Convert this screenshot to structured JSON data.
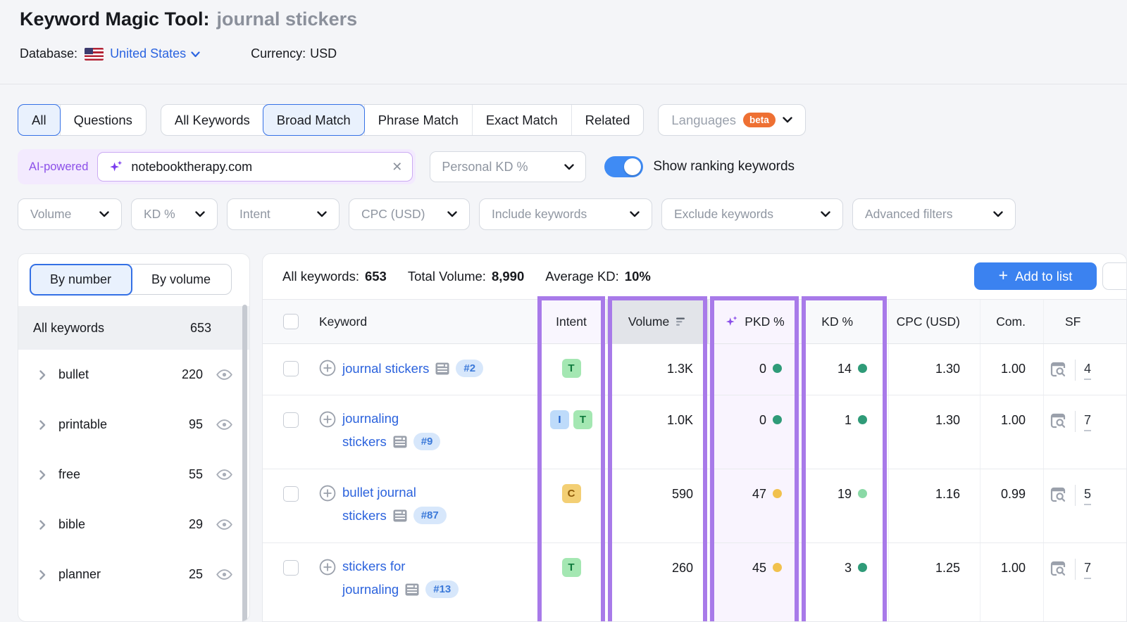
{
  "header": {
    "title": "Keyword Magic Tool:",
    "query": "journal stickers",
    "database_label": "Database:",
    "database_value": "United States",
    "currency_label": "Currency:",
    "currency_value": "USD"
  },
  "match_tabs": {
    "group1": [
      {
        "label": "All",
        "selected": true
      },
      {
        "label": "Questions",
        "selected": false
      }
    ],
    "group2": [
      {
        "label": "All Keywords",
        "selected": false
      },
      {
        "label": "Broad Match",
        "selected": true
      },
      {
        "label": "Phrase Match",
        "selected": false
      },
      {
        "label": "Exact Match",
        "selected": false
      },
      {
        "label": "Related",
        "selected": false
      }
    ],
    "languages_label": "Languages",
    "languages_badge": "beta"
  },
  "search": {
    "ai_label": "AI-powered",
    "value": "notebooktherapy.com",
    "personal_kd_label": "Personal KD %",
    "toggle_label": "Show ranking keywords",
    "toggle_on": true
  },
  "filters": [
    "Volume",
    "KD %",
    "Intent",
    "CPC (USD)",
    "Include keywords",
    "Exclude keywords",
    "Advanced filters"
  ],
  "sidebar": {
    "tabs": [
      {
        "label": "By number",
        "selected": true
      },
      {
        "label": "By volume",
        "selected": false
      }
    ],
    "all_row": {
      "label": "All keywords",
      "count": "653"
    },
    "groups": [
      {
        "label": "bullet",
        "count": "220"
      },
      {
        "label": "printable",
        "count": "95"
      },
      {
        "label": "free",
        "count": "55"
      },
      {
        "label": "bible",
        "count": "29"
      },
      {
        "label": "planner",
        "count": "25"
      }
    ]
  },
  "stats": {
    "all_keywords_label": "All keywords:",
    "all_keywords_value": "653",
    "total_volume_label": "Total Volume:",
    "total_volume_value": "8,990",
    "average_kd_label": "Average KD:",
    "average_kd_value": "10%",
    "add_to_list_label": "Add to list"
  },
  "table": {
    "headers": {
      "keyword": "Keyword",
      "intent": "Intent",
      "volume": "Volume",
      "pkd": "PKD %",
      "kd": "KD %",
      "cpc": "CPC (USD)",
      "com": "Com.",
      "sf": "SF"
    },
    "rows": [
      {
        "lines": [
          "journal stickers"
        ],
        "rank": "#2",
        "intents": [
          "T"
        ],
        "volume": "1.3K",
        "pkd": "0",
        "pkd_dot": "green",
        "kd": "14",
        "kd_dot": "green",
        "cpc": "1.30",
        "com": "1.00",
        "sf": "4"
      },
      {
        "lines": [
          "journaling",
          "stickers"
        ],
        "rank": "#9",
        "intents": [
          "I",
          "T"
        ],
        "volume": "1.0K",
        "pkd": "0",
        "pkd_dot": "green",
        "kd": "1",
        "kd_dot": "green",
        "cpc": "1.30",
        "com": "1.00",
        "sf": "7"
      },
      {
        "lines": [
          "bullet journal",
          "stickers"
        ],
        "rank": "#87",
        "intents": [
          "C"
        ],
        "volume": "590",
        "pkd": "47",
        "pkd_dot": "yellow",
        "kd": "19",
        "kd_dot": "lightgreen",
        "cpc": "1.16",
        "com": "0.99",
        "sf": "5"
      },
      {
        "lines": [
          "stickers for",
          "journaling"
        ],
        "rank": "#13",
        "intents": [
          "T"
        ],
        "volume": "260",
        "pkd": "45",
        "pkd_dot": "yellow",
        "kd": "3",
        "kd_dot": "green",
        "cpc": "1.25",
        "com": "1.00",
        "sf": "7"
      }
    ]
  },
  "colors": {
    "highlight_purple": "#a87ae9",
    "ai_purple": "#8b4fe9",
    "primary_blue": "#3b82f0",
    "link_blue": "#2c63dd",
    "toggle_blue": "#3f8bf4",
    "beta_orange": "#ee7033",
    "intent_transactional_bg": "#a4e7b2",
    "intent_informational_bg": "#bedbfa",
    "intent_commercial_bg": "#f3cf74",
    "dot_green": "#2f9b78",
    "dot_lightgreen": "#8ad9a6",
    "dot_yellow": "#f1c14d"
  }
}
